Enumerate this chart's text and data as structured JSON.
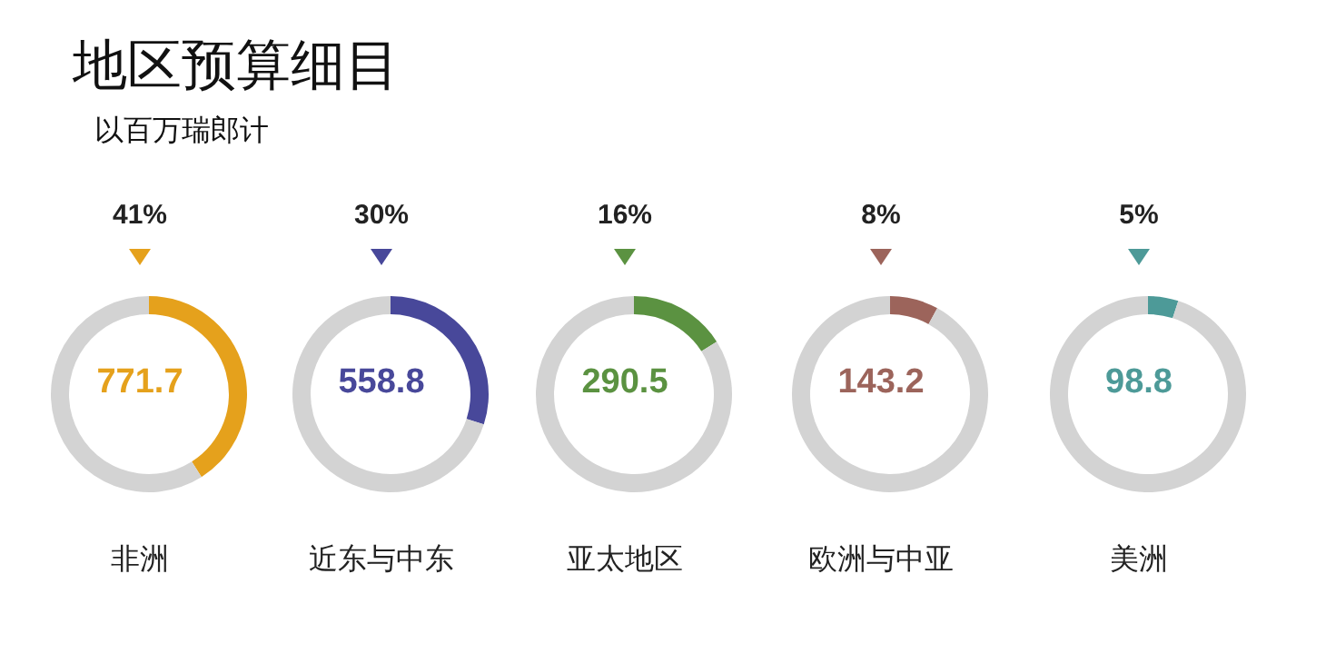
{
  "chart_data": [
    {
      "type": "donut",
      "title": "地区预算细目",
      "subtitle": "以百万瑞郎计",
      "xlabel": "非洲",
      "categories": [
        null,
        null
      ],
      "values": [
        41,
        59
      ],
      "colors": [
        "#e5a11c",
        "#d3d3d3"
      ],
      "value_labels": [
        "41%",
        null
      ],
      "annotations": [
        "771.7"
      ]
    },
    {
      "type": "donut",
      "xlabel": "近东与中东",
      "categories": [
        null,
        null
      ],
      "values": [
        30,
        70
      ],
      "colors": [
        "#48489a",
        "#d3d3d3"
      ],
      "value_labels": [
        "30%",
        null
      ],
      "annotations": [
        "558.8"
      ]
    },
    {
      "type": "donut",
      "xlabel": "亚太地区",
      "categories": [
        null,
        null
      ],
      "values": [
        16,
        84
      ],
      "colors": [
        "#5b9241",
        "#d3d3d3"
      ],
      "value_labels": [
        "16%",
        null
      ],
      "annotations": [
        "290.5"
      ]
    },
    {
      "type": "donut",
      "xlabel": "欧洲与中亚",
      "categories": [
        null,
        null
      ],
      "values": [
        8,
        92
      ],
      "colors": [
        "#9c645b",
        "#d3d3d3"
      ],
      "value_labels": [
        "8%",
        null
      ],
      "annotations": [
        "143.2"
      ]
    },
    {
      "type": "donut",
      "xlabel": "美洲",
      "categories": [
        null,
        null
      ],
      "values": [
        5,
        95
      ],
      "colors": [
        "#4d9a98",
        "#d3d3d3"
      ],
      "value_labels": [
        "5%",
        null
      ],
      "annotations": [
        "98.8"
      ]
    }
  ]
}
